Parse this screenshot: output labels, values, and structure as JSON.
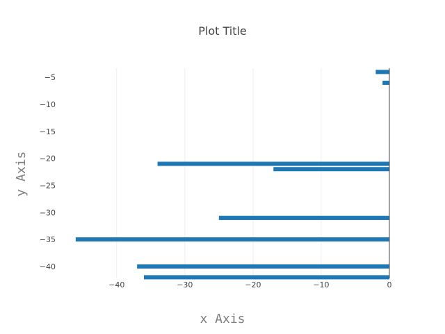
{
  "chart_data": {
    "type": "bar",
    "orientation": "horizontal",
    "title": "Plot Title",
    "xlabel": "x Axis",
    "ylabel": "y Axis",
    "xlim": [
      -46.5,
      0
    ],
    "ylim": [
      -42.2,
      -3.3
    ],
    "xticks": [
      -40,
      -30,
      -20,
      -10,
      0
    ],
    "xtick_labels": [
      "−40",
      "−30",
      "−20",
      "−10",
      "0"
    ],
    "yticks": [
      -5,
      -10,
      -15,
      -20,
      -25,
      -30,
      -35,
      -40
    ],
    "ytick_labels": [
      "−5",
      "−10",
      "−15",
      "−20",
      "−25",
      "−30",
      "−35",
      "−40"
    ],
    "grid": true,
    "legend": false,
    "color": "#1f77b4",
    "series": [
      {
        "points": [
          {
            "y": -4,
            "x": -2
          },
          {
            "y": -6,
            "x": -1
          },
          {
            "y": -21,
            "x": -34
          },
          {
            "y": -22,
            "x": -17
          },
          {
            "y": -31,
            "x": -25
          },
          {
            "y": -35,
            "x": -46
          },
          {
            "y": -40,
            "x": -37
          },
          {
            "y": -42,
            "x": -36
          }
        ]
      }
    ]
  }
}
